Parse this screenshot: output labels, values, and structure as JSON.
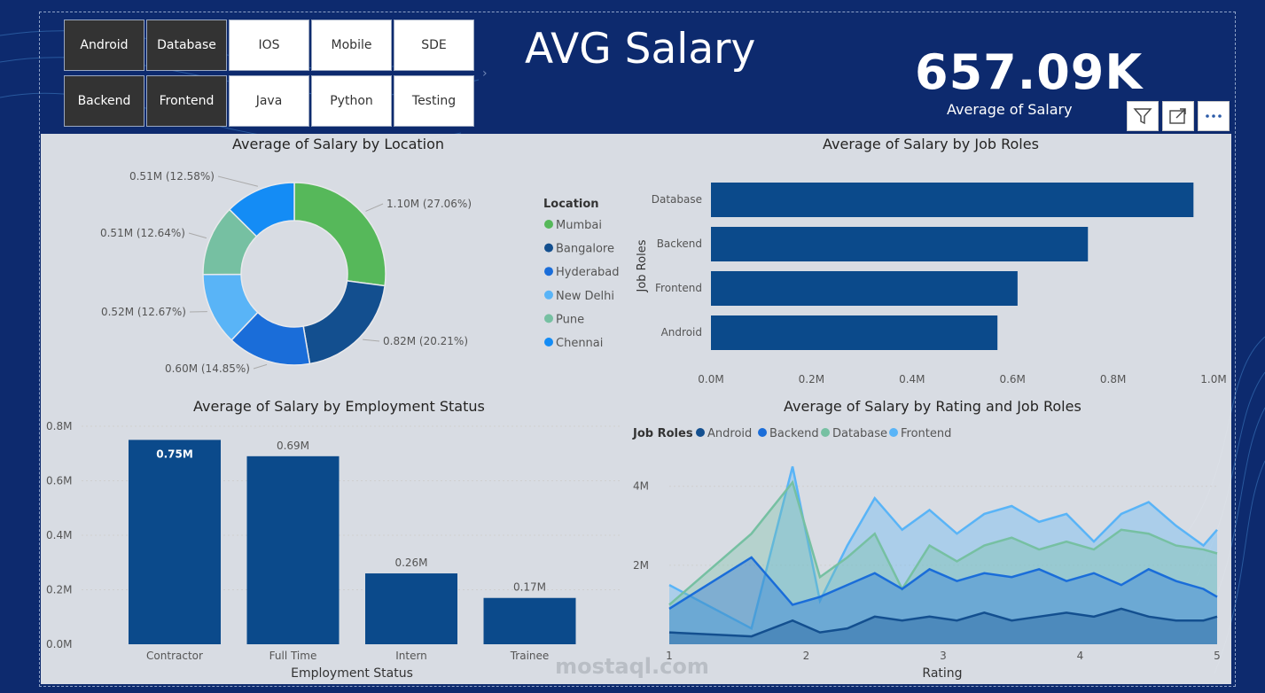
{
  "slicer": {
    "items": [
      {
        "label": "Android",
        "selected": true
      },
      {
        "label": "Database",
        "selected": true
      },
      {
        "label": "IOS",
        "selected": false
      },
      {
        "label": "Mobile",
        "selected": false
      },
      {
        "label": "SDE",
        "selected": false
      },
      {
        "label": "Backend",
        "selected": true
      },
      {
        "label": "Frontend",
        "selected": true
      },
      {
        "label": "Java",
        "selected": false
      },
      {
        "label": "Python",
        "selected": false
      },
      {
        "label": "Testing",
        "selected": false
      }
    ]
  },
  "header": {
    "title": "AVG Salary"
  },
  "kpi": {
    "value": "657.09K",
    "label": "Average of Salary"
  },
  "toolbar": {
    "icons": [
      "filter-icon",
      "focus-mode-icon",
      "more-options-icon"
    ]
  },
  "colors": {
    "background": "#0d2a6e",
    "bar": "#0b4a8b",
    "mumbai": "#56b85a",
    "bangalore": "#134f8f",
    "hyderabad": "#1a6dd9",
    "newdelhi": "#59b4f7",
    "pune": "#76c0a2",
    "chennai": "#148cf5"
  },
  "chart_data": [
    {
      "type": "pie",
      "title": "Average of Salary by Location",
      "legend_title": "Location",
      "legend_position": "right",
      "slices": [
        {
          "name": "Mumbai",
          "value": 1.1,
          "pct": 27.06,
          "label": "1.10M (27.06%)",
          "color": "#56b85a"
        },
        {
          "name": "Bangalore",
          "value": 0.82,
          "pct": 20.21,
          "label": "0.82M (20.21%)",
          "color": "#134f8f"
        },
        {
          "name": "Hyderabad",
          "value": 0.6,
          "pct": 14.85,
          "label": "0.60M (14.85%)",
          "color": "#1a6dd9"
        },
        {
          "name": "New Delhi",
          "value": 0.52,
          "pct": 12.67,
          "label": "0.52M (12.67%)",
          "color": "#59b4f7"
        },
        {
          "name": "Pune",
          "value": 0.51,
          "pct": 12.64,
          "label": "0.51M (12.64%)",
          "color": "#76c0a2"
        },
        {
          "name": "Chennai",
          "value": 0.51,
          "pct": 12.58,
          "label": "0.51M (12.58%)",
          "color": "#148cf5"
        }
      ]
    },
    {
      "type": "bar",
      "orientation": "horizontal",
      "title": "Average of Salary by Job Roles",
      "ylabel": "Job Roles",
      "categories": [
        "Database",
        "Backend",
        "Frontend",
        "Android"
      ],
      "values": [
        0.96,
        0.75,
        0.61,
        0.57
      ],
      "xlim": [
        0,
        1.0
      ],
      "xticks": [
        "0.0M",
        "0.2M",
        "0.4M",
        "0.6M",
        "0.8M",
        "1.0M"
      ]
    },
    {
      "type": "bar",
      "title": "Average of Salary by Employment Status",
      "xlabel": "Employment Status",
      "categories": [
        "Contractor",
        "Full Time",
        "Intern",
        "Trainee"
      ],
      "values": [
        0.75,
        0.69,
        0.26,
        0.17
      ],
      "data_labels": [
        "0.75M",
        "0.69M",
        "0.26M",
        "0.17M"
      ],
      "ylim": [
        0,
        0.8
      ],
      "yticks": [
        "0.0M",
        "0.2M",
        "0.4M",
        "0.6M",
        "0.8M"
      ]
    },
    {
      "type": "area",
      "title": "Average of Salary by Rating and Job Roles",
      "xlabel": "Rating",
      "legend_title": "Job Roles",
      "legend_position": "top-left",
      "xlim": [
        1,
        5
      ],
      "xticks": [
        "1",
        "2",
        "3",
        "4",
        "5"
      ],
      "ylim": [
        0,
        4.6
      ],
      "yticks": [
        "2M",
        "4M"
      ],
      "x": [
        1.0,
        1.6,
        1.9,
        2.1,
        2.3,
        2.5,
        2.7,
        2.9,
        3.1,
        3.3,
        3.5,
        3.7,
        3.9,
        4.1,
        4.3,
        4.5,
        4.7,
        4.9,
        5.0
      ],
      "series": [
        {
          "name": "Android",
          "color": "#134f8f",
          "values": [
            0.3,
            0.2,
            0.6,
            0.3,
            0.4,
            0.7,
            0.6,
            0.7,
            0.6,
            0.8,
            0.6,
            0.7,
            0.8,
            0.7,
            0.9,
            0.7,
            0.6,
            0.6,
            0.7
          ]
        },
        {
          "name": "Backend",
          "color": "#1a6dd9",
          "values": [
            0.9,
            2.2,
            1.0,
            1.2,
            1.5,
            1.8,
            1.4,
            1.9,
            1.6,
            1.8,
            1.7,
            1.9,
            1.6,
            1.8,
            1.5,
            1.9,
            1.6,
            1.4,
            1.2
          ]
        },
        {
          "name": "Database",
          "color": "#76c0a2",
          "values": [
            1.0,
            2.8,
            4.1,
            1.7,
            2.2,
            2.8,
            1.4,
            2.5,
            2.1,
            2.5,
            2.7,
            2.4,
            2.6,
            2.4,
            2.9,
            2.8,
            2.5,
            2.4,
            2.3
          ]
        },
        {
          "name": "Frontend",
          "color": "#59b4f7",
          "values": [
            1.5,
            0.4,
            4.5,
            1.1,
            2.5,
            3.7,
            2.9,
            3.4,
            2.8,
            3.3,
            3.5,
            3.1,
            3.3,
            2.6,
            3.3,
            3.6,
            3.0,
            2.5,
            2.9
          ]
        }
      ]
    }
  ],
  "watermark": {
    "text": "mostaql.com"
  }
}
